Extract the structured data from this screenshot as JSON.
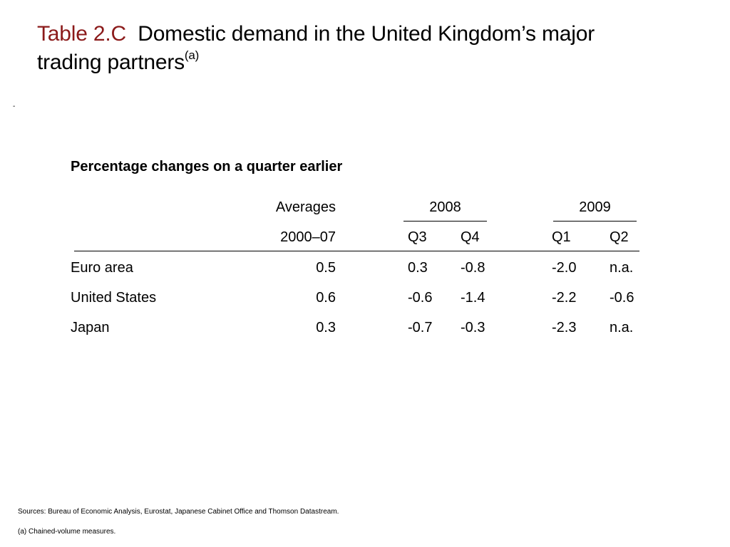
{
  "title": {
    "label": "Table 2.C",
    "text_line1": "Domestic demand in the United Kingdom’s major",
    "text_line2": "trading partners",
    "superscript": "(a)"
  },
  "stray_mark": "-",
  "subtitle": "Percentage changes on a quarter earlier",
  "table": {
    "header_top": {
      "averages": "Averages",
      "year1": "2008",
      "year2": "2009"
    },
    "header_bottom": {
      "period": "2000–07",
      "q3": "Q3",
      "q4": "Q4",
      "q1": "Q1",
      "q2": "Q2"
    },
    "rows": [
      {
        "region": "Euro area",
        "avg": "0.5",
        "q3_2008": "0.3",
        "q4_2008": "-0.8",
        "q1_2009": "-2.0",
        "q2_2009": "n.a."
      },
      {
        "region": "United States",
        "avg": "0.6",
        "q3_2008": "-0.6",
        "q4_2008": "-1.4",
        "q1_2009": "-2.2",
        "q2_2009": "-0.6"
      },
      {
        "region": "Japan",
        "avg": "0.3",
        "q3_2008": "-0.7",
        "q4_2008": "-0.3",
        "q1_2009": "-2.3",
        "q2_2009": "n.a."
      }
    ]
  },
  "footnotes": {
    "sources": "Sources:  Bureau of Economic Analysis, Eurostat, Japanese Cabinet Office and Thomson Datastream.",
    "note_a": "(a) Chained-volume measures."
  },
  "colors": {
    "title_label": "#8b1a1a",
    "text": "#000000",
    "background": "#ffffff"
  }
}
